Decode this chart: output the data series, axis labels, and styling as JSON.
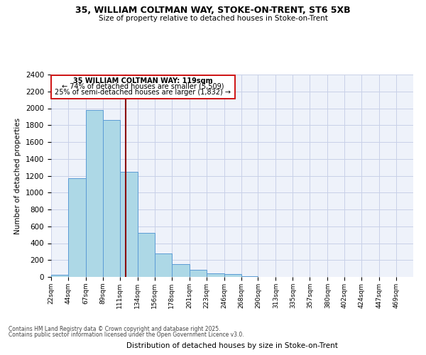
{
  "title1": "35, WILLIAM COLTMAN WAY, STOKE-ON-TRENT, ST6 5XB",
  "title2": "Size of property relative to detached houses in Stoke-on-Trent",
  "xlabel": "Distribution of detached houses by size in Stoke-on-Trent",
  "ylabel": "Number of detached properties",
  "bin_labels": [
    "22sqm",
    "44sqm",
    "67sqm",
    "89sqm",
    "111sqm",
    "134sqm",
    "156sqm",
    "178sqm",
    "201sqm",
    "223sqm",
    "246sqm",
    "268sqm",
    "290sqm",
    "313sqm",
    "335sqm",
    "357sqm",
    "380sqm",
    "402sqm",
    "424sqm",
    "447sqm",
    "469sqm"
  ],
  "bin_edges": [
    22,
    44,
    67,
    89,
    111,
    134,
    156,
    178,
    201,
    223,
    246,
    268,
    290,
    313,
    335,
    357,
    380,
    402,
    424,
    447,
    469
  ],
  "bar_heights": [
    25,
    1170,
    1980,
    1860,
    1250,
    525,
    275,
    150,
    85,
    45,
    35,
    5,
    2,
    1,
    0,
    0,
    0,
    0,
    0,
    0,
    0
  ],
  "bar_color": "#add8e6",
  "bar_edge_color": "#5b9bd5",
  "bg_color": "#eef2fa",
  "grid_color": "#c8d0e8",
  "property_size": 119,
  "property_label": "35 WILLIAM COLTMAN WAY: 119sqm",
  "annotation_line1": "← 74% of detached houses are smaller (5,509)",
  "annotation_line2": "25% of semi-detached houses are larger (1,832) →",
  "vline_color": "#8b0000",
  "vline_x": 119,
  "ylim": [
    0,
    2400
  ],
  "yticks": [
    0,
    200,
    400,
    600,
    800,
    1000,
    1200,
    1400,
    1600,
    1800,
    2000,
    2200,
    2400
  ],
  "footer1": "Contains HM Land Registry data © Crown copyright and database right 2025.",
  "footer2": "Contains public sector information licensed under the Open Government Licence v3.0."
}
